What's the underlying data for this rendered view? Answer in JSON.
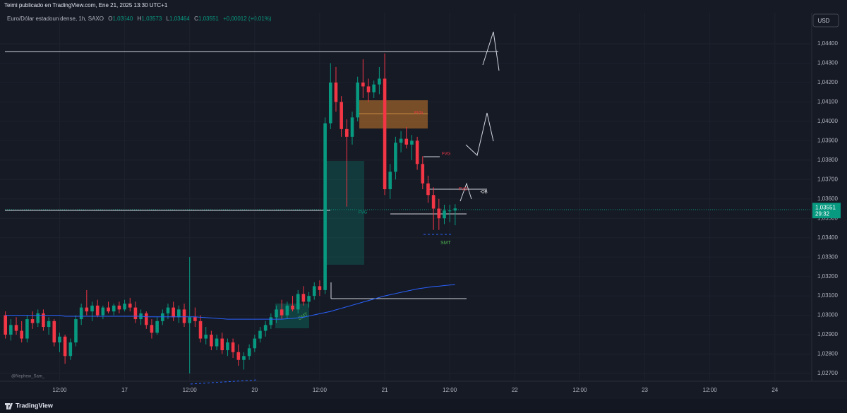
{
  "header": {
    "publisher": "Teimi publicado en TradingView.com, Ene 21, 2025 13:30 UTC+1",
    "symbol": "Euro/Dólar estadounidense, 1h, SAXO",
    "o_label": "O",
    "o": "1,03540",
    "h_label": "H",
    "h": "1,03573",
    "l_label": "L",
    "l": "1,03464",
    "c_label": "C",
    "c": "1,03551",
    "change": "+0,00012 (+0,01%)",
    "currency": "USD"
  },
  "annotations": {
    "fvg": [
      "FVG",
      "FVG",
      "FVG",
      "FVG"
    ],
    "ob": "-OB",
    "smt": [
      "SMT",
      "SMT"
    ],
    "watermark": "@Nephew_Sam_",
    "brand": "TradingView"
  },
  "price_label": {
    "value": 1.03551,
    "label": "1,03551",
    "countdown": "29:32"
  },
  "chart_data": {
    "type": "candlestick",
    "grid": true,
    "up_color": "#089981",
    "down_color": "#f23645",
    "ma_color": "#2962ff",
    "xlim": [
      -1,
      148.8
    ],
    "ylim": [
      1.0266,
      1.0456
    ],
    "xticks": [
      {
        "value": 10,
        "label": "12:00"
      },
      {
        "value": 22,
        "label": "17"
      },
      {
        "value": 34,
        "label": "12:00"
      },
      {
        "value": 46,
        "label": "20"
      },
      {
        "value": 58,
        "label": "12:00"
      },
      {
        "value": 70,
        "label": "21"
      },
      {
        "value": 82,
        "label": "12:00"
      },
      {
        "value": 94,
        "label": "22"
      },
      {
        "value": 106,
        "label": "12:00"
      },
      {
        "value": 118,
        "label": "23"
      },
      {
        "value": 130,
        "label": "12:00"
      },
      {
        "value": 142,
        "label": "24"
      }
    ],
    "yticks": [
      {
        "value": 1.027,
        "label": "1,02700"
      },
      {
        "value": 1.028,
        "label": "1,02800"
      },
      {
        "value": 1.029,
        "label": "1,02900"
      },
      {
        "value": 1.03,
        "label": "1,03000"
      },
      {
        "value": 1.031,
        "label": "1,03100"
      },
      {
        "value": 1.032,
        "label": "1,03200"
      },
      {
        "value": 1.033,
        "label": "1,03300"
      },
      {
        "value": 1.034,
        "label": "1,03400"
      },
      {
        "value": 1.035,
        "label": "1,03500"
      },
      {
        "value": 1.036,
        "label": "1,03600"
      },
      {
        "value": 1.037,
        "label": "1,03700"
      },
      {
        "value": 1.038,
        "label": "1,03800"
      },
      {
        "value": 1.039,
        "label": "1,03900"
      },
      {
        "value": 1.04,
        "label": "1,04000"
      },
      {
        "value": 1.041,
        "label": "1,04100"
      },
      {
        "value": 1.042,
        "label": "1,04200"
      },
      {
        "value": 1.043,
        "label": "1,04300"
      },
      {
        "value": 1.044,
        "label": "1,04400"
      }
    ],
    "candles": [
      [
        1.03,
        1.0302,
        1.0288,
        1.029
      ],
      [
        1.029,
        1.0298,
        1.0287,
        1.0295
      ],
      [
        1.0295,
        1.0299,
        1.029,
        1.0292
      ],
      [
        1.0292,
        1.0297,
        1.0286,
        1.0288
      ],
      [
        1.0288,
        1.03,
        1.0286,
        1.0298
      ],
      [
        1.0298,
        1.0302,
        1.0293,
        1.0296
      ],
      [
        1.0296,
        1.0303,
        1.0294,
        1.0301
      ],
      [
        1.0301,
        1.0303,
        1.0292,
        1.0294
      ],
      [
        1.0294,
        1.0299,
        1.029,
        1.0297
      ],
      [
        1.0297,
        1.0298,
        1.0284,
        1.0286
      ],
      [
        1.0286,
        1.0291,
        1.0281,
        1.0289
      ],
      [
        1.0289,
        1.029,
        1.0275,
        1.0279
      ],
      [
        1.0279,
        1.0288,
        1.0277,
        1.0286
      ],
      [
        1.0286,
        1.03,
        1.0284,
        1.0298
      ],
      [
        1.0298,
        1.0306,
        1.0295,
        1.0304
      ],
      [
        1.0304,
        1.0313,
        1.03,
        1.0302
      ],
      [
        1.0302,
        1.0307,
        1.0297,
        1.0305
      ],
      [
        1.0305,
        1.0308,
        1.0299,
        1.03
      ],
      [
        1.03,
        1.0305,
        1.0298,
        1.0304
      ],
      [
        1.0304,
        1.0307,
        1.0301,
        1.0302
      ],
      [
        1.0302,
        1.0306,
        1.03,
        1.0305
      ],
      [
        1.0305,
        1.0307,
        1.0301,
        1.0303
      ],
      [
        1.0303,
        1.0308,
        1.0302,
        1.0306
      ],
      [
        1.0306,
        1.0309,
        1.0302,
        1.0304
      ],
      [
        1.0304,
        1.0307,
        1.0296,
        1.0298
      ],
      [
        1.0298,
        1.0303,
        1.0295,
        1.0301
      ],
      [
        1.0301,
        1.0302,
        1.0293,
        1.0295
      ],
      [
        1.0295,
        1.0298,
        1.0288,
        1.0291
      ],
      [
        1.0291,
        1.0299,
        1.029,
        1.0297
      ],
      [
        1.0297,
        1.0303,
        1.0295,
        1.0301
      ],
      [
        1.0301,
        1.0306,
        1.0298,
        1.0304
      ],
      [
        1.0304,
        1.0307,
        1.0297,
        1.0299
      ],
      [
        1.0299,
        1.0305,
        1.0296,
        1.0303
      ],
      [
        1.0303,
        1.0306,
        1.0294,
        1.0296
      ],
      [
        1.0296,
        1.033,
        1.027,
        1.0299
      ],
      [
        1.0299,
        1.0304,
        1.0294,
        1.0297
      ],
      [
        1.0297,
        1.03,
        1.0286,
        1.0288
      ],
      [
        1.0288,
        1.0294,
        1.0285,
        1.029
      ],
      [
        1.029,
        1.0292,
        1.0282,
        1.0284
      ],
      [
        1.0284,
        1.029,
        1.0282,
        1.0288
      ],
      [
        1.0288,
        1.0291,
        1.028,
        1.0282
      ],
      [
        1.0282,
        1.0288,
        1.0279,
        1.0286
      ],
      [
        1.0286,
        1.0288,
        1.0278,
        1.0281
      ],
      [
        1.0281,
        1.0285,
        1.0274,
        1.0277
      ],
      [
        1.0277,
        1.0281,
        1.0272,
        1.0279
      ],
      [
        1.0279,
        1.0285,
        1.0277,
        1.0283
      ],
      [
        1.0283,
        1.029,
        1.0281,
        1.0288
      ],
      [
        1.0288,
        1.0294,
        1.0286,
        1.0292
      ],
      [
        1.0292,
        1.0297,
        1.0289,
        1.0295
      ],
      [
        1.0295,
        1.0301,
        1.0293,
        1.0299
      ],
      [
        1.0299,
        1.0305,
        1.0296,
        1.0303
      ],
      [
        1.0303,
        1.0308,
        1.0298,
        1.03
      ],
      [
        1.03,
        1.0307,
        1.0298,
        1.0305
      ],
      [
        1.0305,
        1.031,
        1.0302,
        1.0303
      ],
      [
        1.0303,
        1.0313,
        1.0301,
        1.0311
      ],
      [
        1.0311,
        1.0315,
        1.0305,
        1.0307
      ],
      [
        1.0307,
        1.0312,
        1.0304,
        1.031
      ],
      [
        1.031,
        1.0317,
        1.0308,
        1.0315
      ],
      [
        1.0315,
        1.0318,
        1.031,
        1.0313
      ],
      [
        1.0313,
        1.0402,
        1.0311,
        1.0399
      ],
      [
        1.0399,
        1.043,
        1.0396,
        1.042
      ],
      [
        1.042,
        1.0428,
        1.0405,
        1.041
      ],
      [
        1.041,
        1.0413,
        1.0392,
        1.0396
      ],
      [
        1.0396,
        1.0401,
        1.0356,
        1.0392
      ],
      [
        1.0392,
        1.0405,
        1.0388,
        1.0402
      ],
      [
        1.0402,
        1.0423,
        1.04,
        1.042
      ],
      [
        1.042,
        1.0432,
        1.0412,
        1.0418
      ],
      [
        1.0418,
        1.0422,
        1.041,
        1.0415
      ],
      [
        1.0415,
        1.0421,
        1.0412,
        1.0419
      ],
      [
        1.0419,
        1.0428,
        1.0414,
        1.0422
      ],
      [
        1.0422,
        1.0435,
        1.0362,
        1.0365
      ],
      [
        1.0365,
        1.0378,
        1.036,
        1.0374
      ],
      [
        1.0374,
        1.0392,
        1.037,
        1.0389
      ],
      [
        1.0389,
        1.0395,
        1.0384,
        1.0391
      ],
      [
        1.0391,
        1.0397,
        1.0386,
        1.0388
      ],
      [
        1.0388,
        1.0393,
        1.038,
        1.039
      ],
      [
        1.039,
        1.0392,
        1.0375,
        1.0378
      ],
      [
        1.0378,
        1.0382,
        1.0365,
        1.0368
      ],
      [
        1.0368,
        1.0372,
        1.0358,
        1.0362
      ],
      [
        1.0362,
        1.0366,
        1.0344,
        1.0355
      ],
      [
        1.0355,
        1.036,
        1.0344,
        1.035
      ],
      [
        1.035,
        1.0357,
        1.0347,
        1.0354
      ],
      [
        1.0354,
        1.0357,
        1.0348,
        1.0354
      ],
      [
        1.0354,
        1.03573,
        1.03464,
        1.03551
      ]
    ],
    "ma": [
      1.03,
      1.03,
      1.03,
      1.03,
      1.03,
      1.03,
      1.03,
      1.03,
      1.03,
      1.03,
      1.03,
      1.02995,
      1.02995,
      1.02995,
      1.02995,
      1.02995,
      1.02995,
      1.02995,
      1.02995,
      1.02995,
      1.02995,
      1.02995,
      1.02995,
      1.02995,
      1.02995,
      1.02995,
      1.02992,
      1.02992,
      1.02992,
      1.02992,
      1.02992,
      1.02992,
      1.02992,
      1.02992,
      1.02992,
      1.02992,
      1.0299,
      1.02988,
      1.02986,
      1.02984,
      1.02982,
      1.0298,
      1.0298,
      1.0298,
      1.0298,
      1.0298,
      1.0298,
      1.0298,
      1.0298,
      1.0298,
      1.0298,
      1.0298,
      1.02982,
      1.02984,
      1.02987,
      1.0299,
      1.02996,
      1.03002,
      1.03008,
      1.03014,
      1.0302,
      1.03028,
      1.03036,
      1.03044,
      1.03052,
      1.0306,
      1.03068,
      1.03076,
      1.03084,
      1.03092,
      1.031,
      1.03106,
      1.03112,
      1.03118,
      1.03124,
      1.0313,
      1.03136,
      1.0314,
      1.03144,
      1.03148,
      1.0315,
      1.03153,
      1.03156,
      1.03158
    ]
  }
}
